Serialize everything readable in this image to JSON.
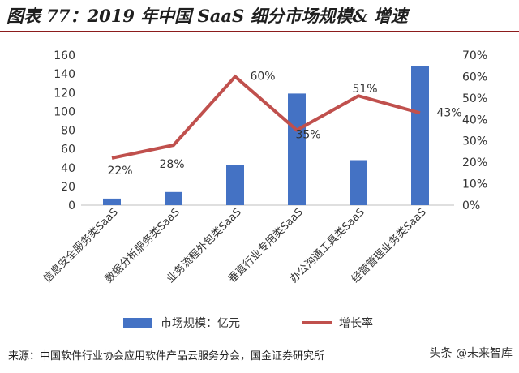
{
  "title": "图表 77：2019 年中国 SaaS 细分市场规模& 增速",
  "source": "来源：中国软件行业协会应用软件产品云服务分会，国金证券研究所",
  "watermark": "头条 @未来智库",
  "colors": {
    "bar": "#4472C4",
    "line": "#C0504D",
    "title_rule": "#8C1C1C"
  },
  "chart_data": {
    "type": "bar",
    "categories": [
      "信息安全服务类SaaS",
      "数据分析服务类SaaS",
      "业务流程外包类SaaS",
      "垂直行业专用类SaaS",
      "办公沟通工具类SaaS",
      "经营管理业务类SaaS"
    ],
    "series": [
      {
        "name": "市场规模：亿元",
        "type": "bar",
        "axis": "left",
        "values": [
          7,
          14,
          43,
          119,
          48,
          148
        ]
      },
      {
        "name": "增长率",
        "type": "line",
        "axis": "right",
        "values": [
          0.22,
          0.28,
          0.6,
          0.35,
          0.51,
          0.43
        ],
        "labels": [
          "22%",
          "28%",
          "60%",
          "35%",
          "51%",
          "43%"
        ]
      }
    ],
    "left_axis": {
      "min": 0,
      "max": 160,
      "ticks": [
        "0",
        "20",
        "40",
        "60",
        "80",
        "100",
        "120",
        "140",
        "160"
      ]
    },
    "right_axis": {
      "min": 0,
      "max": 0.7,
      "ticks": [
        "0%",
        "10%",
        "20%",
        "30%",
        "40%",
        "50%",
        "60%",
        "70%"
      ]
    },
    "legend": "bottom"
  }
}
